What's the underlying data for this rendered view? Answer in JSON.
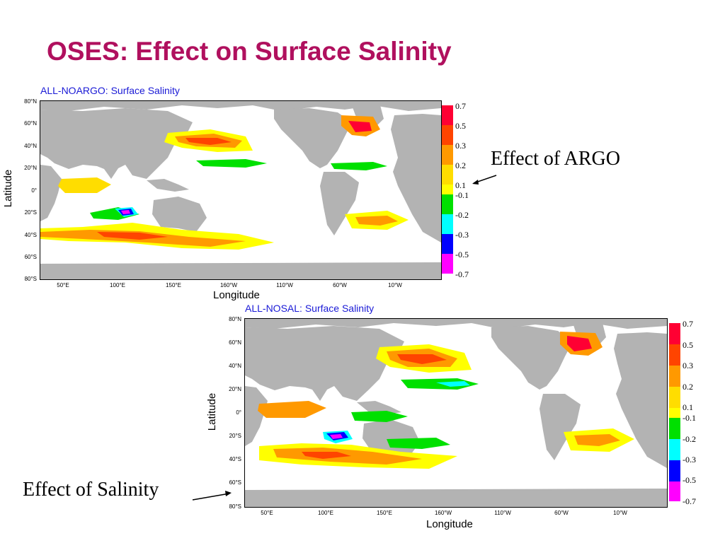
{
  "title": "OSES: Effect on Surface Salinity",
  "panels": [
    {
      "title": "ALL-NOARGO: Surface Salinity",
      "xlabel": "Longitude",
      "ylabel": "Latitude",
      "lat_ticks": [
        "80°N",
        "60°N",
        "40°N",
        "20°N",
        "0°",
        "20°S",
        "40°S",
        "60°S",
        "80°S"
      ],
      "lon_ticks": [
        "50°E",
        "100°E",
        "150°E",
        "160°W",
        "110°W",
        "60°W",
        "10°W"
      ]
    },
    {
      "title": "ALL-NOSAL: Surface Salinity",
      "xlabel": "Longitude",
      "ylabel": "Latitude",
      "lat_ticks": [
        "80°N",
        "60°N",
        "40°N",
        "20°N",
        "0°",
        "20°S",
        "40°S",
        "60°S",
        "80°S"
      ],
      "lon_ticks": [
        "50°E",
        "100°E",
        "150°E",
        "160°W",
        "110°W",
        "60°W",
        "10°W"
      ]
    }
  ],
  "colorbar": {
    "positive": [
      {
        "label": "0.7",
        "color": "#ff0033"
      },
      {
        "label": "0.5",
        "color": "#ff4400"
      },
      {
        "label": "0.3",
        "color": "#ff9900"
      },
      {
        "label": "0.2",
        "color": "#ffdd00"
      },
      {
        "label": "0.1",
        "color": "#ffff00"
      }
    ],
    "negative": [
      {
        "label": "-0.1",
        "color": "#00e000"
      },
      {
        "label": "-0.2",
        "color": "#00ffff"
      },
      {
        "label": "-0.3",
        "color": "#0000ff"
      },
      {
        "label": "-0.5",
        "color": "#ff00ff"
      },
      {
        "label": "-0.7",
        "color": "#ffffff"
      }
    ]
  },
  "annotations": {
    "argo": "Effect of ARGO",
    "salinity": "Effect of Salinity"
  },
  "colors": {
    "land": "#b3b3b3",
    "ocean": "#ffffff",
    "title": "#b0105e",
    "panel_title": "#1a1ad6"
  }
}
